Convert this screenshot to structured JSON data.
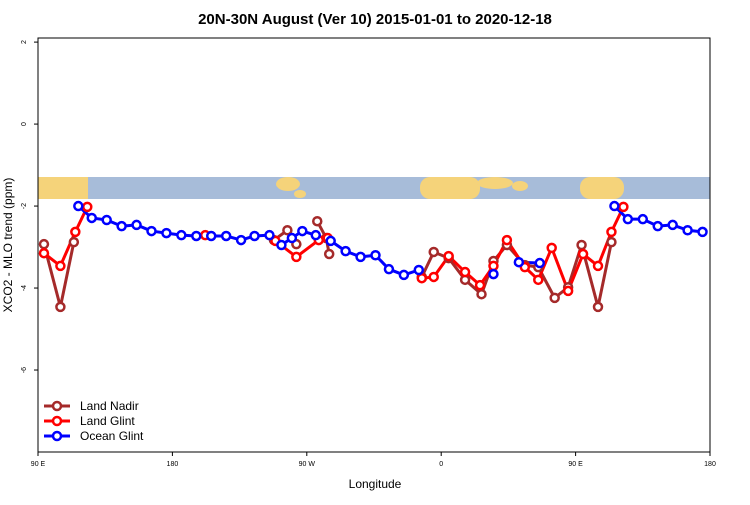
{
  "chart_data": {
    "type": "line",
    "title": "20N-30N August (Ver 10)   2015-01-01 to 2020-12-18",
    "x_label": "Longitude",
    "y_label": "XCO2 - MLO trend (ppm)",
    "xlim": [
      90,
      540
    ],
    "ylim": [
      -8,
      2.1
    ],
    "xticks": [
      {
        "value": 90,
        "label": "90 E"
      },
      {
        "value": 180,
        "label": "180"
      },
      {
        "value": 270,
        "label": "90 W"
      },
      {
        "value": 360,
        "label": "0"
      },
      {
        "value": 450,
        "label": "90 E"
      },
      {
        "value": 540,
        "label": "180"
      }
    ],
    "yticks": [
      2,
      0,
      -2,
      -4,
      -6
    ],
    "legend": "bottomleft",
    "series": [
      {
        "name": "Land Nadir",
        "color": "#a52a2a",
        "x": [
          94,
          105,
          114,
          120,
          248,
          257,
          263,
          270,
          277,
          283,
          285,
          300,
          347,
          355,
          365,
          376,
          387,
          395,
          404,
          416,
          425,
          436,
          445,
          454,
          465,
          474
        ],
        "values": [
          -2.93,
          -4.46,
          -2.88,
          null,
          -2.83,
          -2.59,
          -2.93,
          null,
          -2.37,
          -2.78,
          -3.17,
          null,
          -3.73,
          -3.12,
          -3.27,
          -3.8,
          -4.15,
          -3.34,
          -2.95,
          -3.44,
          -3.49,
          -4.24,
          -3.98,
          -2.95,
          -4.46,
          -2.88
        ]
      },
      {
        "name": "Land Glint",
        "color": "#ff0000",
        "x": [
          94,
          105,
          115,
          123,
          150,
          202,
          220,
          249,
          263,
          278,
          284,
          300,
          347,
          355,
          365,
          376,
          386,
          395,
          404,
          416,
          425,
          434,
          445,
          455,
          465,
          474,
          482
        ],
        "values": [
          -3.15,
          -3.46,
          -2.63,
          -2.02,
          null,
          -2.71,
          null,
          -2.85,
          -3.24,
          -2.83,
          -2.78,
          null,
          -3.76,
          -3.73,
          -3.22,
          -3.61,
          -3.93,
          -3.46,
          -2.83,
          -3.49,
          -3.8,
          -3.02,
          -4.07,
          -3.17,
          -3.46,
          -2.63,
          -2.02
        ]
      },
      {
        "name": "Ocean Glint",
        "color": "#0000ff",
        "x": [
          117,
          126,
          136,
          146,
          156,
          166,
          176,
          186,
          196,
          206,
          216,
          226,
          235,
          245,
          253,
          260,
          267,
          276,
          286,
          296,
          306,
          316,
          325,
          335,
          345,
          370,
          395,
          404,
          412,
          426,
          450,
          476,
          485,
          495,
          505,
          515,
          525,
          535
        ],
        "values": [
          -2.0,
          -2.29,
          -2.34,
          -2.49,
          -2.46,
          -2.61,
          -2.66,
          -2.71,
          -2.73,
          -2.73,
          -2.73,
          -2.83,
          -2.73,
          -2.71,
          -2.95,
          -2.78,
          -2.61,
          -2.71,
          -2.85,
          -3.1,
          -3.24,
          -3.2,
          -3.54,
          -3.68,
          -3.56,
          null,
          -3.66,
          null,
          -3.37,
          -3.39,
          null,
          -2.0,
          -2.32,
          -2.32,
          -2.49,
          -2.46,
          -2.59,
          -2.63
        ]
      }
    ]
  }
}
